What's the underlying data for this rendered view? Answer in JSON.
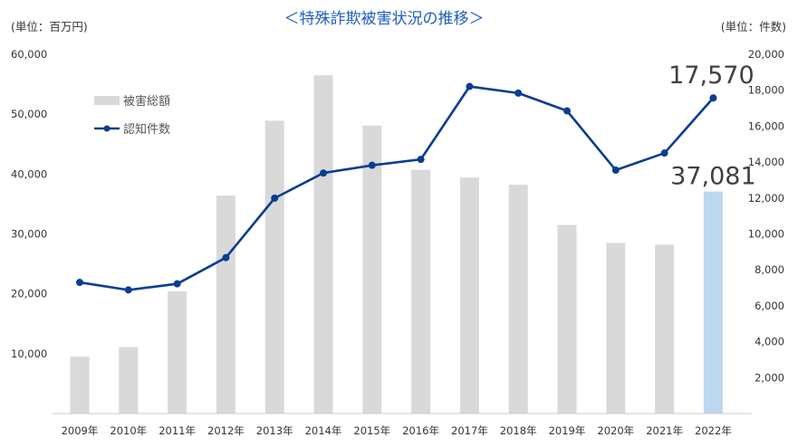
{
  "chart_data": {
    "type": "bar",
    "title": "＜特殊詐欺被害状況の推移＞",
    "y_left_label": "(単位：百万円)",
    "y_right_label": "(単位：件数)",
    "categories": [
      "2009年",
      "2010年",
      "2011年",
      "2012年",
      "2013年",
      "2014年",
      "2015年",
      "2016年",
      "2017年",
      "2018年",
      "2019年",
      "2020年",
      "2021年",
      "2022年"
    ],
    "y_left_ticks": [
      "10,000",
      "20,000",
      "30,000",
      "40,000",
      "50,000",
      "60,000"
    ],
    "y_right_ticks": [
      "2,000",
      "4,000",
      "6,000",
      "8,000",
      "10,000",
      "12,000",
      "14,000",
      "16,000",
      "18,000",
      "20,000"
    ],
    "ylim_left": [
      0,
      60000
    ],
    "ylim_right": [
      0,
      20000
    ],
    "series": [
      {
        "name": "被害総額",
        "type": "bar",
        "axis": "left",
        "values": [
          9500,
          11100,
          20400,
          36400,
          48900,
          56500,
          48100,
          40700,
          39400,
          38200,
          31500,
          28500,
          28200,
          37081
        ],
        "color": "#d9d9d9",
        "highlight_color": "#bdd7ee",
        "highlight_index": 13
      },
      {
        "name": "認知件数",
        "type": "line",
        "axis": "right",
        "values": [
          7300,
          6880,
          7220,
          8680,
          11990,
          13390,
          13820,
          14150,
          18210,
          17840,
          16850,
          13550,
          14500,
          17570
        ],
        "color": "#0b3d91"
      }
    ],
    "callouts": [
      {
        "text": "17,570",
        "series": "認知件数",
        "index": 13
      },
      {
        "text": "37,081",
        "series": "被害総額",
        "index": 13
      }
    ],
    "legend_position": "top-left",
    "grid": false
  }
}
